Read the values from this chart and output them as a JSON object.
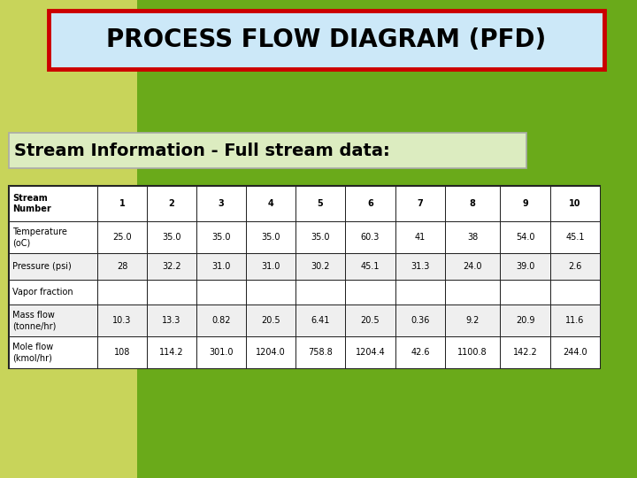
{
  "title": "PROCESS FLOW DIAGRAM (PFD)",
  "subtitle": "Stream Information - Full stream data:",
  "bg_color_outer": "#6aaa1a",
  "bg_color_left": "#c8d45a",
  "title_bg": "#cce8f8",
  "title_border": "#cc0000",
  "subtitle_bg": "#dcecc0",
  "table_headers": [
    "Stream\nNumber",
    "1",
    "2",
    "3",
    "4",
    "5",
    "6",
    "7",
    "8",
    "9",
    "10"
  ],
  "table_rows": [
    [
      "Temperature\n(oC)",
      "25.0",
      "35.0",
      "35.0",
      "35.0",
      "35.0",
      "60.3",
      "41",
      "38",
      "54.0",
      "45.1"
    ],
    [
      "Pressure (psi)",
      "28",
      "32.2",
      "31.0",
      "31.0",
      "30.2",
      "45.1",
      "31.3",
      "24.0",
      "39.0",
      "2.6"
    ],
    [
      "Vapor fraction",
      "",
      "",
      "",
      "",
      "",
      "",
      "",
      "",
      "",
      ""
    ],
    [
      "Mass flow\n(tonne/hr)",
      "10.3",
      "13.3",
      "0.82",
      "20.5",
      "6.41",
      "20.5",
      "0.36",
      "9.2",
      "20.9",
      "11.6"
    ],
    [
      "Mole flow\n(kmol/hr)",
      "108",
      "114.2",
      "301.0",
      "1204.0",
      "758.8",
      "1204.4",
      "42.6",
      "1100.8",
      "142.2",
      "244.0"
    ]
  ],
  "table_bg": "#ffffff",
  "table_border": "#222222",
  "row_bg_colors": [
    "#ffffff",
    "#ffffff",
    "#efefef",
    "#ffffff",
    "#efefef",
    "#ffffff"
  ]
}
